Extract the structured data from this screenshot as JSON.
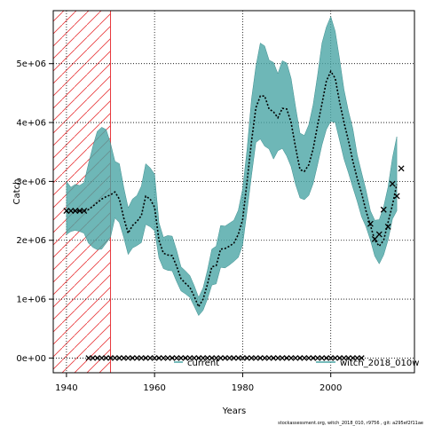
{
  "chart_data": {
    "type": "line",
    "title": "",
    "xlabel": "Years",
    "ylabel": "Catch",
    "xlim": [
      1937,
      2019
    ],
    "ylim": [
      -250000,
      5900000
    ],
    "x_ticks": [
      1940,
      1960,
      1980,
      2000
    ],
    "x_tick_labels": [
      "1940",
      "1960",
      "1980",
      "2000"
    ],
    "y_ticks": [
      0,
      1000000,
      2000000,
      3000000,
      4000000,
      5000000
    ],
    "y_tick_labels": [
      "0e+00",
      "1e+06",
      "2e+06",
      "3e+06",
      "4e+06",
      "5e+06"
    ],
    "grid": true,
    "hatch_region": {
      "x_start": 1937,
      "x_end": 1950,
      "color": "#e8383b"
    },
    "band_color": "#4aa5a5",
    "line_color": "#000000",
    "series": [
      {
        "name": "current",
        "type": "band_line",
        "x": [
          1940,
          1941,
          1942,
          1943,
          1944,
          1945,
          1946,
          1947,
          1948,
          1949,
          1950,
          1951,
          1952,
          1953,
          1954,
          1955,
          1956,
          1957,
          1958,
          1959,
          1960,
          1961,
          1962,
          1963,
          1964,
          1965,
          1966,
          1967,
          1968,
          1969,
          1970,
          1971,
          1972,
          1973,
          1974,
          1975,
          1976,
          1977,
          1978,
          1979,
          1980,
          1981,
          1982,
          1983,
          1984,
          1985,
          1986,
          1987,
          1988,
          1989,
          1990,
          1991,
          1992,
          1993,
          1994,
          1995,
          1996,
          1997,
          1998,
          1999,
          2000,
          2001,
          2002,
          2003,
          2004,
          2005,
          2006,
          2007,
          2008,
          2009,
          2010,
          2011,
          2012,
          2013,
          2014,
          2015
        ],
        "y": [
          2480000,
          2500000,
          2500000,
          2500000,
          2500000,
          2520000,
          2580000,
          2640000,
          2700000,
          2740000,
          2770000,
          2820000,
          2700000,
          2380000,
          2120000,
          2250000,
          2320000,
          2420000,
          2750000,
          2700000,
          2560000,
          2000000,
          1780000,
          1750000,
          1740000,
          1560000,
          1350000,
          1270000,
          1200000,
          1050000,
          870000,
          1000000,
          1250000,
          1550000,
          1570000,
          1850000,
          1860000,
          1900000,
          1950000,
          2100000,
          2350000,
          3000000,
          3680000,
          4250000,
          4450000,
          4450000,
          4230000,
          4180000,
          4080000,
          4240000,
          4230000,
          4000000,
          3580000,
          3200000,
          3170000,
          3280000,
          3550000,
          3950000,
          4320000,
          4700000,
          4870000,
          4750000,
          4350000,
          4000000,
          3700000,
          3350000,
          3050000,
          2800000,
          2500000,
          2250000,
          2000000,
          1900000,
          2000000,
          2300000,
          2600000,
          2950000
        ],
        "lower": [
          2100000,
          2150000,
          2170000,
          2150000,
          2120000,
          1950000,
          1880000,
          1840000,
          1850000,
          1950000,
          2050000,
          2380000,
          2300000,
          2050000,
          1760000,
          1870000,
          1910000,
          1960000,
          2270000,
          2230000,
          2160000,
          1700000,
          1520000,
          1490000,
          1480000,
          1300000,
          1140000,
          1090000,
          1030000,
          880000,
          720000,
          810000,
          1000000,
          1240000,
          1260000,
          1540000,
          1530000,
          1580000,
          1640000,
          1710000,
          1920000,
          2500000,
          3100000,
          3660000,
          3720000,
          3600000,
          3550000,
          3380000,
          3520000,
          3560000,
          3430000,
          3250000,
          2950000,
          2720000,
          2690000,
          2760000,
          2960000,
          3280000,
          3620000,
          3880000,
          4020000,
          4000000,
          3700000,
          3380000,
          3150000,
          2900000,
          2660000,
          2400000,
          2230000,
          2000000,
          1730000,
          1600000,
          1750000,
          2000000,
          2360000,
          2500000
        ],
        "upper": [
          3000000,
          2900000,
          2950000,
          2930000,
          2980000,
          3300000,
          3600000,
          3850000,
          3920000,
          3880000,
          3650000,
          3340000,
          3300000,
          2900000,
          2550000,
          2700000,
          2760000,
          2920000,
          3300000,
          3230000,
          3120000,
          2300000,
          2050000,
          2080000,
          2070000,
          1830000,
          1550000,
          1480000,
          1400000,
          1230000,
          1030000,
          1190000,
          1490000,
          1850000,
          1900000,
          2250000,
          2240000,
          2290000,
          2340000,
          2510000,
          2870000,
          3550000,
          4400000,
          4950000,
          5350000,
          5300000,
          5060000,
          5020000,
          4830000,
          5050000,
          5010000,
          4750000,
          4270000,
          3820000,
          3780000,
          3960000,
          4300000,
          4800000,
          5350000,
          5620000,
          5800000,
          5550000,
          5080000,
          4560000,
          4200000,
          3900000,
          3450000,
          3150000,
          2850000,
          2500000,
          2340000,
          2350000,
          2570000,
          2900000,
          3400000,
          3760000
        ]
      },
      {
        "name": "witch_2018_010w",
        "type": "points",
        "marker": "x",
        "x": [
          1940,
          1941,
          1942,
          1943,
          1944,
          2009,
          2010,
          2011,
          2012,
          2013,
          2014,
          2015,
          2016
        ],
        "y": [
          2500000,
          2500000,
          2500000,
          2500000,
          2500000,
          2280000,
          2020000,
          2100000,
          2520000,
          2230000,
          2960000,
          2750000,
          3220000
        ]
      },
      {
        "name": "zero-catch",
        "type": "points",
        "marker": "x",
        "x_start": 1945,
        "x_end": 2007,
        "y": 0
      }
    ],
    "legend_labels": [
      "current",
      "witch_2018_010w"
    ],
    "footer": "stockassessment.org, witch_2018_010, r9756 , git: a295ef2f11ae"
  }
}
